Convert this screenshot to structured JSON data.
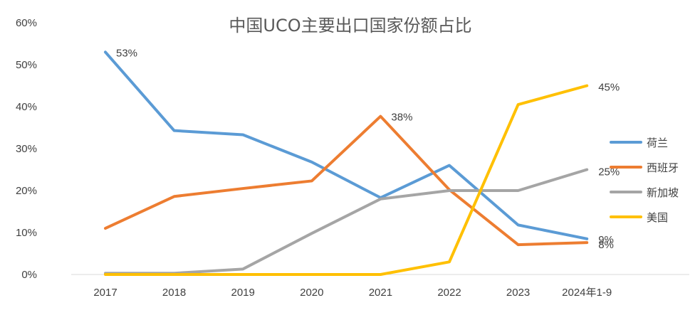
{
  "chart_data": {
    "type": "line",
    "title": "中国UCO主要出口国家份额占比",
    "categories": [
      "2017",
      "2018",
      "2019",
      "2020",
      "2021",
      "2022",
      "2023",
      "2024年1-9"
    ],
    "ylim": [
      0,
      60
    ],
    "yticks": [
      "0%",
      "10%",
      "20%",
      "30%",
      "40%",
      "50%",
      "60%"
    ],
    "grid": false,
    "legend_position": "right",
    "series": [
      {
        "name": "荷兰",
        "color": "#5B9BD5",
        "values": [
          53,
          34.3,
          33.3,
          26.8,
          18.3,
          26,
          11.8,
          8.5
        ]
      },
      {
        "name": "西班牙",
        "color": "#ED7D31",
        "values": [
          11,
          18.6,
          20.5,
          22.3,
          37.7,
          20.2,
          7.1,
          7.6
        ]
      },
      {
        "name": "新加坡",
        "color": "#A5A5A5",
        "values": [
          0.3,
          0.3,
          1.3,
          9.8,
          18,
          20,
          20,
          25
        ]
      },
      {
        "name": "美国",
        "color": "#FFC000",
        "values": [
          0,
          0,
          0,
          0,
          0,
          3,
          40.5,
          45
        ]
      }
    ],
    "data_labels": [
      {
        "series": 0,
        "index": 0,
        "text": "53%"
      },
      {
        "series": 1,
        "index": 4,
        "text": "38%"
      },
      {
        "series": 3,
        "index": 7,
        "text": "45%"
      },
      {
        "series": 2,
        "index": 7,
        "text": "25%"
      },
      {
        "series": 0,
        "index": 7,
        "text": "9%"
      },
      {
        "series": 1,
        "index": 7,
        "text": "8%"
      }
    ]
  }
}
